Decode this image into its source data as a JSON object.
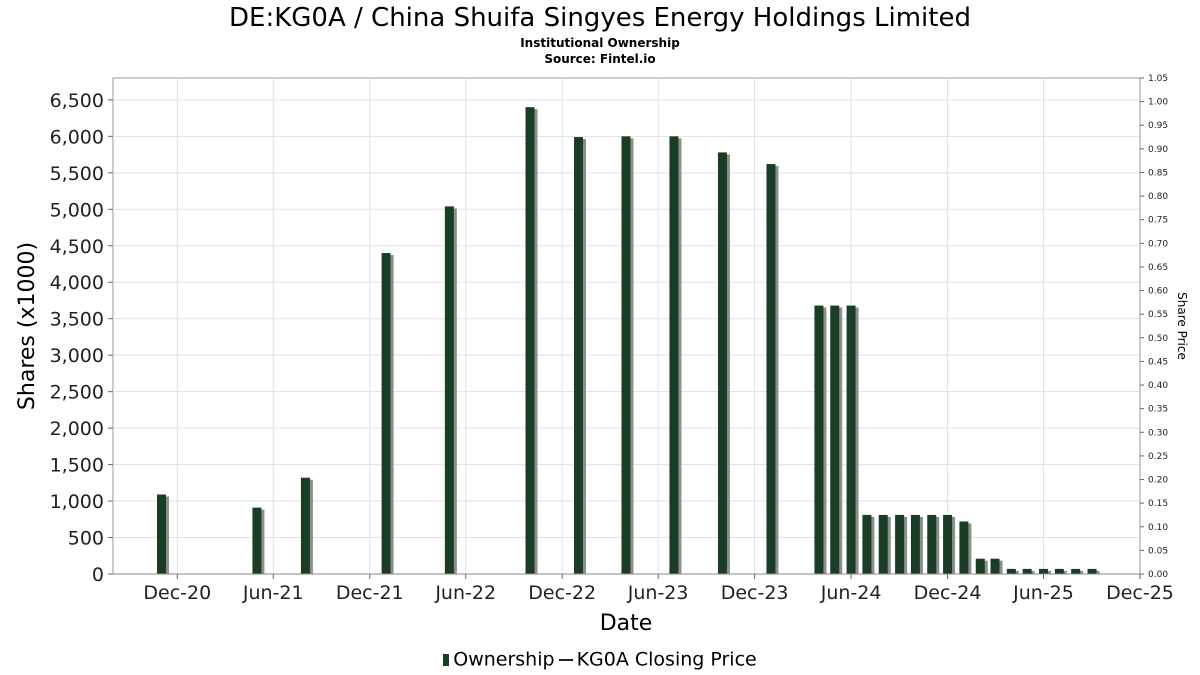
{
  "chart_data": {
    "type": "bar",
    "title": "DE:KG0A / China Shuifa Singyes Energy Holdings Limited",
    "subtitle": "Institutional Ownership",
    "source": "Source: Fintel.io",
    "xlabel": "Date",
    "ylabel": "Shares (x1000)",
    "y2label": "Share Price",
    "ylim": [
      0,
      6800
    ],
    "y2lim": [
      0,
      1.05
    ],
    "yticks": [
      "0",
      "500",
      "1,000",
      "1,500",
      "2,000",
      "2,500",
      "3,000",
      "3,500",
      "4,000",
      "4,500",
      "5,000",
      "5,500",
      "6,000",
      "6,500"
    ],
    "y2ticks": [
      "0.00",
      "0.05",
      "0.10",
      "0.15",
      "0.20",
      "0.25",
      "0.30",
      "0.35",
      "0.40",
      "0.45",
      "0.50",
      "0.55",
      "0.60",
      "0.65",
      "0.70",
      "0.75",
      "0.80",
      "0.85",
      "0.90",
      "0.95",
      "1.00",
      "1.05"
    ],
    "xticks": [
      {
        "label": "Dec-20",
        "date": "2020-12-01"
      },
      {
        "label": "Jun-21",
        "date": "2021-06-01"
      },
      {
        "label": "Dec-21",
        "date": "2021-12-01"
      },
      {
        "label": "Jun-22",
        "date": "2022-06-01"
      },
      {
        "label": "Dec-22",
        "date": "2022-12-01"
      },
      {
        "label": "Jun-23",
        "date": "2023-06-01"
      },
      {
        "label": "Dec-23",
        "date": "2023-12-01"
      },
      {
        "label": "Jun-24",
        "date": "2024-06-01"
      },
      {
        "label": "Dec-24",
        "date": "2024-12-01"
      },
      {
        "label": "Jun-25",
        "date": "2025-06-01"
      },
      {
        "label": "Dec-25",
        "date": "2025-12-01"
      }
    ],
    "x_range": [
      "2020-08-01",
      "2025-12-01"
    ],
    "grid": true,
    "legend_placement": "bottom",
    "series": [
      {
        "name": "Ownership",
        "color": "#1a3e24",
        "points": [
          {
            "date": "2020-11-01",
            "value": 1090
          },
          {
            "date": "2021-05-01",
            "value": 910
          },
          {
            "date": "2021-08-01",
            "value": 1320
          },
          {
            "date": "2022-01-01",
            "value": 4400
          },
          {
            "date": "2022-05-01",
            "value": 5040
          },
          {
            "date": "2022-10-01",
            "value": 6400
          },
          {
            "date": "2023-01-01",
            "value": 5990
          },
          {
            "date": "2023-04-01",
            "value": 6000
          },
          {
            "date": "2023-07-01",
            "value": 6000
          },
          {
            "date": "2023-10-01",
            "value": 5780
          },
          {
            "date": "2024-01-01",
            "value": 5620
          },
          {
            "date": "2024-04-01",
            "value": 3680
          },
          {
            "date": "2024-05-01",
            "value": 3680
          },
          {
            "date": "2024-06-01",
            "value": 3680
          },
          {
            "date": "2024-07-01",
            "value": 810
          },
          {
            "date": "2024-08-01",
            "value": 810
          },
          {
            "date": "2024-09-01",
            "value": 810
          },
          {
            "date": "2024-10-01",
            "value": 810
          },
          {
            "date": "2024-11-01",
            "value": 810
          },
          {
            "date": "2024-12-01",
            "value": 810
          },
          {
            "date": "2025-01-01",
            "value": 720
          },
          {
            "date": "2025-02-01",
            "value": 210
          },
          {
            "date": "2025-03-01",
            "value": 210
          },
          {
            "date": "2025-04-01",
            "value": 70
          },
          {
            "date": "2025-05-01",
            "value": 70
          },
          {
            "date": "2025-06-01",
            "value": 70
          },
          {
            "date": "2025-07-01",
            "value": 70
          },
          {
            "date": "2025-08-01",
            "value": 70
          },
          {
            "date": "2025-09-01",
            "value": 70
          }
        ]
      },
      {
        "name": "KG0A Closing Price",
        "color": "#222222",
        "points": []
      }
    ]
  }
}
